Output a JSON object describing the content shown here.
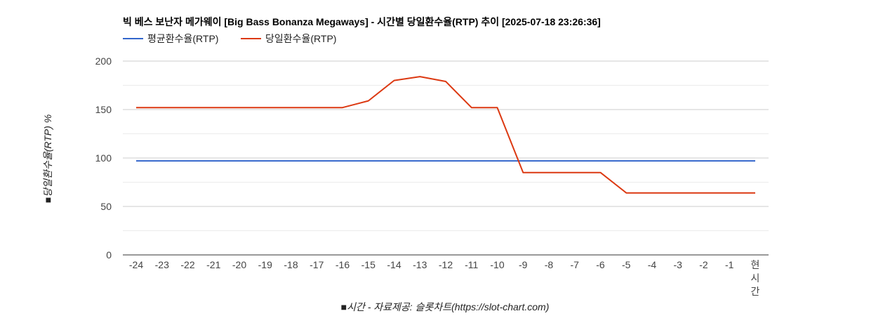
{
  "chart_data": {
    "type": "line",
    "title": "빅 베스 보난자 메가웨이 [Big Bass Bonanza Megaways] - 시간별 당일환수율(RTP) 추이 [2025-07-18 23:26:36]",
    "xlabel": "■시간 - 자료제공: 슬롯차트(https://slot-chart.com)",
    "ylabel": "■당일환수율(RTP) %",
    "categories": [
      "-24",
      "-23",
      "-22",
      "-21",
      "-20",
      "-19",
      "-18",
      "-17",
      "-16",
      "-15",
      "-14",
      "-13",
      "-12",
      "-11",
      "-10",
      "-9",
      "-8",
      "-7",
      "-6",
      "-5",
      "-4",
      "-3",
      "-2",
      "-1",
      "현시간"
    ],
    "ylim": [
      0,
      200
    ],
    "yticks": [
      0,
      50,
      100,
      150,
      200
    ],
    "grid": true,
    "legend_position": "top-left",
    "series": [
      {
        "name": "평균환수율(RTP)",
        "color": "#3366cc",
        "values": [
          97,
          97,
          97,
          97,
          97,
          97,
          97,
          97,
          97,
          97,
          97,
          97,
          97,
          97,
          97,
          97,
          97,
          97,
          97,
          97,
          97,
          97,
          97,
          97,
          97
        ]
      },
      {
        "name": "당일환수율(RTP)",
        "color": "#dc3912",
        "values": [
          152,
          152,
          152,
          152,
          152,
          152,
          152,
          152,
          152,
          159,
          180,
          184,
          179,
          152,
          152,
          85,
          85,
          85,
          85,
          64,
          64,
          64,
          64,
          64,
          64
        ]
      }
    ]
  }
}
